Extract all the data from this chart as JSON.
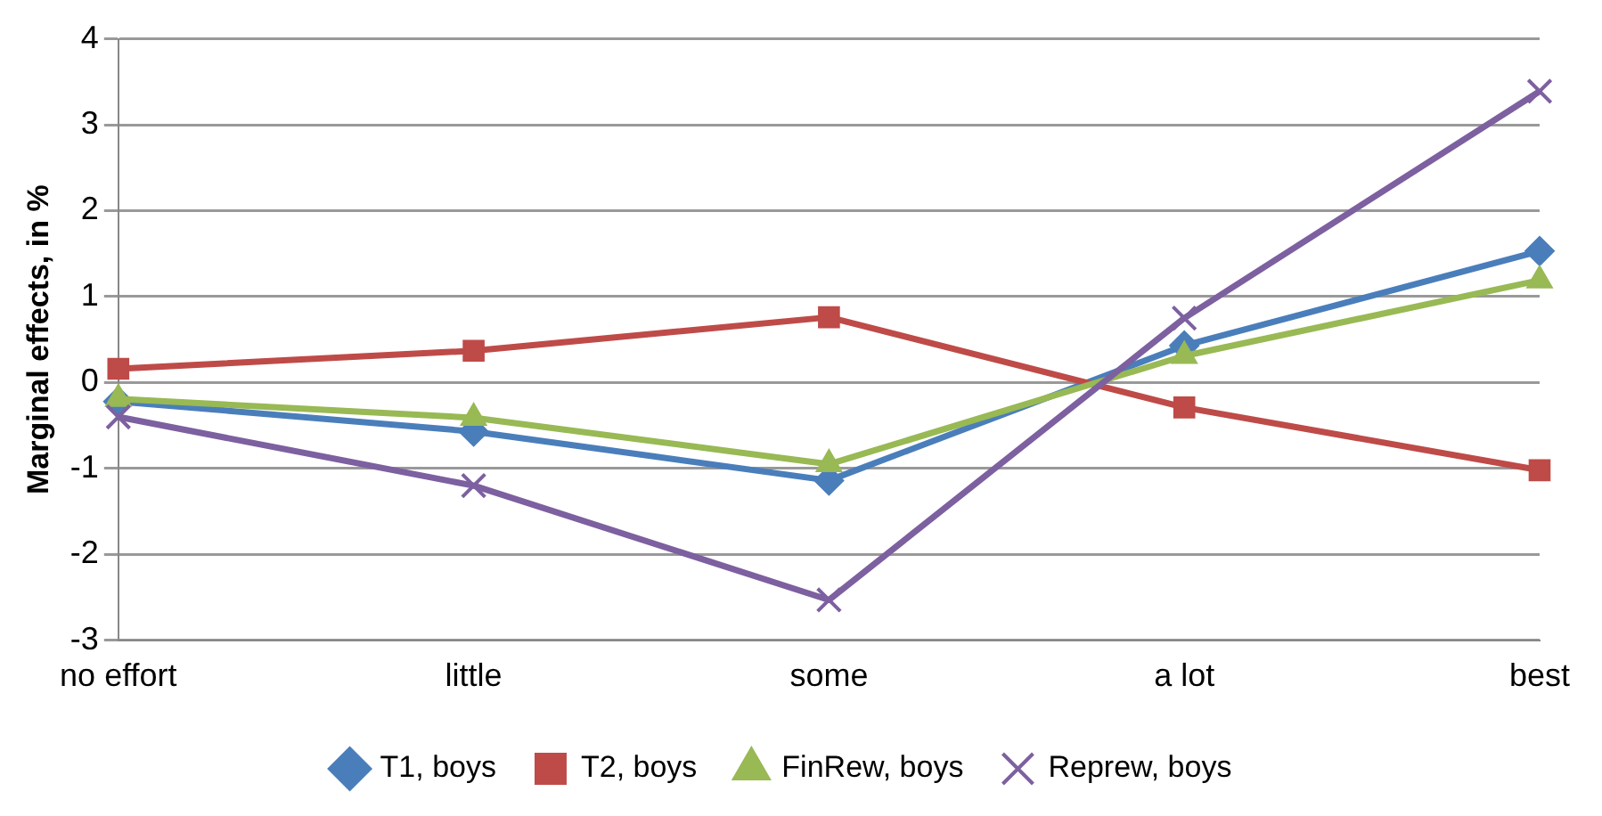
{
  "chart_data": {
    "type": "line",
    "ylabel": "Marginal effects, in %",
    "categories": [
      "no effort",
      "little",
      "some",
      "a lot",
      "best"
    ],
    "series": [
      {
        "name": "T1, boys",
        "color": "#4a7ebb",
        "marker": "diamond",
        "values": [
          -0.22,
          -0.57,
          -1.14,
          0.43,
          1.53
        ]
      },
      {
        "name": "T2, boys",
        "color": "#be4b48",
        "marker": "square",
        "values": [
          0.16,
          0.37,
          0.76,
          -0.29,
          -1.02
        ]
      },
      {
        "name": "FinRew, boys",
        "color": "#98b954",
        "marker": "triangle",
        "values": [
          -0.19,
          -0.41,
          -0.95,
          0.31,
          1.19
        ]
      },
      {
        "name": "Reprew, boys",
        "color": "#7d60a0",
        "marker": "cross",
        "values": [
          -0.4,
          -1.2,
          -2.53,
          0.75,
          3.39
        ]
      }
    ],
    "ylim": [
      -3,
      4
    ],
    "yticks": [
      -3,
      -2,
      -1,
      0,
      1,
      2,
      3,
      4
    ],
    "grid": "y",
    "legend": "bottom"
  }
}
